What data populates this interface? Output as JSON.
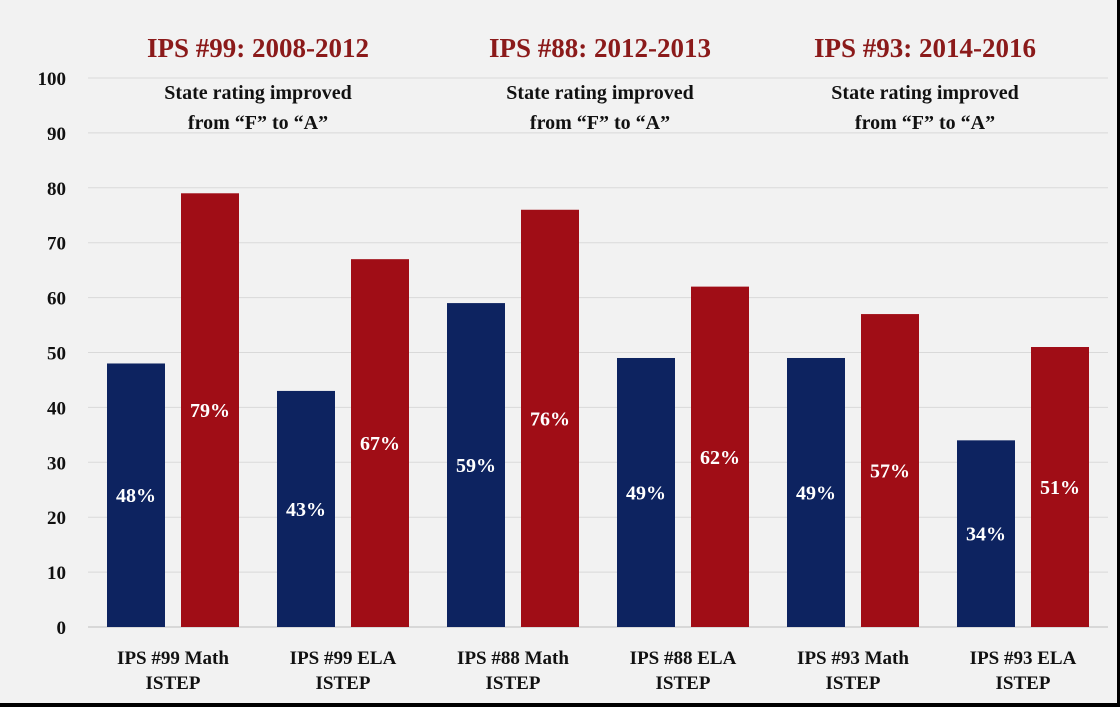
{
  "chart_data": {
    "type": "bar",
    "categories": [
      [
        "IPS #99 Math",
        "ISTEP"
      ],
      [
        "IPS #99 ELA",
        "ISTEP"
      ],
      [
        "IPS #88 Math",
        "ISTEP"
      ],
      [
        "IPS #88 ELA",
        "ISTEP"
      ],
      [
        "IPS #93 Math",
        "ISTEP"
      ],
      [
        "IPS #93 ELA",
        "ISTEP"
      ]
    ],
    "series": [
      {
        "color": "#0d2360",
        "values": [
          48,
          43,
          59,
          49,
          49,
          34
        ],
        "labels": [
          "48%",
          "43%",
          "59%",
          "49%",
          "49%",
          "34%"
        ]
      },
      {
        "color": "#a00d16",
        "values": [
          79,
          67,
          76,
          62,
          57,
          51
        ],
        "labels": [
          "79%",
          "67%",
          "76%",
          "62%",
          "57%",
          "51%"
        ]
      }
    ],
    "ylim": [
      0,
      100
    ],
    "yticks": [
      0,
      10,
      20,
      30,
      40,
      50,
      60,
      70,
      80,
      90,
      100
    ],
    "grid": true,
    "xlabel": "",
    "ylabel": "",
    "annotations": [
      {
        "title": "IPS #99: 2008-2012",
        "lines": [
          "State rating improved",
          "from “F” to “A”"
        ]
      },
      {
        "title": "IPS #88: 2012-2013",
        "lines": [
          "State rating improved",
          "from “F” to “A”"
        ]
      },
      {
        "title": "IPS #93:  2014-2016",
        "lines": [
          "State rating improved",
          "from “F” to “A”"
        ]
      }
    ],
    "title_color": "#8b1a1a"
  }
}
